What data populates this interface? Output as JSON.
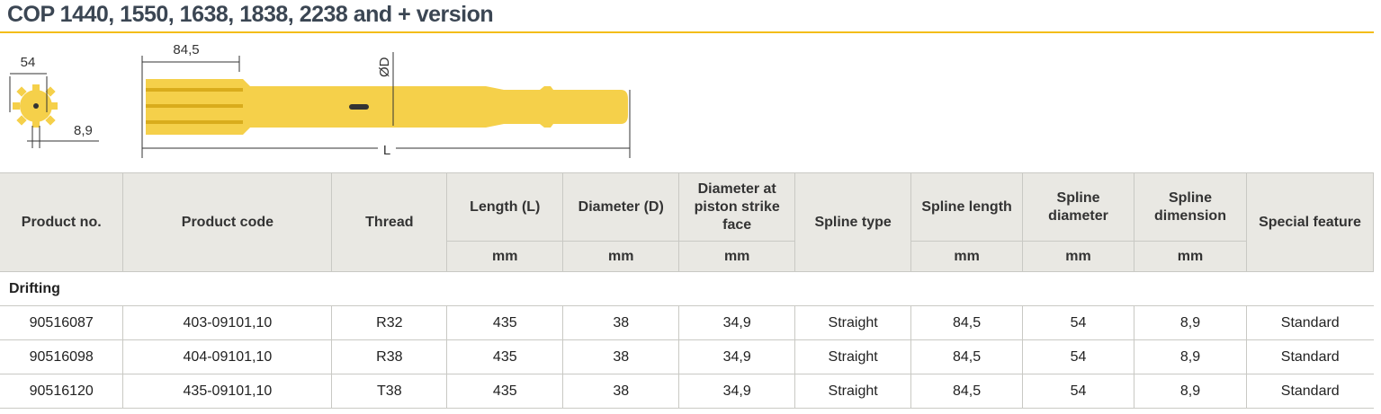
{
  "title": "COP 1440, 1550, 1638, 1838, 2238 and + version",
  "figure": {
    "spline_diameter": "54",
    "spline_dimension": "8,9",
    "spline_length": "84,5",
    "diameter": "ØD",
    "length": "L",
    "colors": {
      "rod": "#f5d04a",
      "rod_dark": "#d9ac1c"
    }
  },
  "table": {
    "headers": [
      "Product no.",
      "Product code",
      "Thread",
      "Length (L)",
      "Diameter (D)",
      "Diameter at piston strike face",
      "Spline type",
      "Spline length",
      "Spline diameter",
      "Spline dimension",
      "Special feature"
    ],
    "units": [
      "mm",
      "mm",
      "mm",
      "mm",
      "mm",
      "mm"
    ],
    "section": "Drifting",
    "rows": [
      [
        "90516087",
        "403-09101,10",
        "R32",
        "435",
        "38",
        "34,9",
        "Straight",
        "84,5",
        "54",
        "8,9",
        "Standard"
      ],
      [
        "90516098",
        "404-09101,10",
        "R38",
        "435",
        "38",
        "34,9",
        "Straight",
        "84,5",
        "54",
        "8,9",
        "Standard"
      ],
      [
        "90516120",
        "435-09101,10",
        "T38",
        "435",
        "38",
        "34,9",
        "Straight",
        "84,5",
        "54",
        "8,9",
        "Standard"
      ]
    ]
  }
}
